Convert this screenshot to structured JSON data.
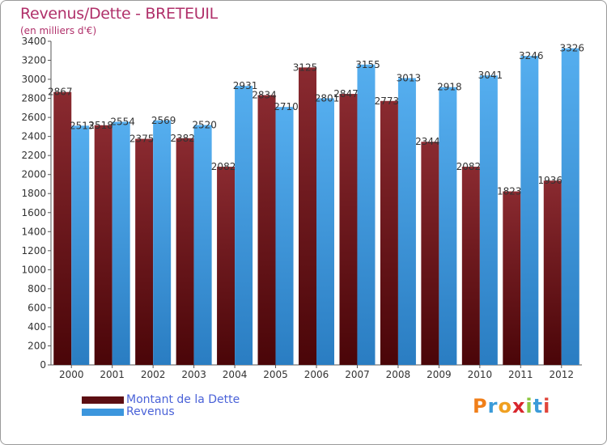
{
  "header": {
    "title": "Revenus/Dette - BRETEUIL",
    "subtitle": "(en milliers d'€)"
  },
  "logo": {
    "text": "Proxiti",
    "letters": [
      "P",
      "r",
      "o",
      "x",
      "i",
      "t",
      "i"
    ],
    "letter_colors": [
      "#f07f1a",
      "#3b9bd9",
      "#f0a020",
      "#d8262c",
      "#8cc63f",
      "#3b9bd9",
      "#e0453a"
    ]
  },
  "chart_data": {
    "type": "bar",
    "title": "Revenus/Dette - BRETEUIL",
    "subtitle": "(en milliers d'€)",
    "categories": [
      "2000",
      "2001",
      "2002",
      "2003",
      "2004",
      "2005",
      "2006",
      "2007",
      "2008",
      "2009",
      "2010",
      "2011",
      "2012"
    ],
    "series": [
      {
        "name": "Montant de la Dette",
        "color": "#7a1c22",
        "values": [
          2867,
          2518,
          2375,
          2382,
          2082,
          2834,
          3125,
          2847,
          2773,
          2344,
          2082,
          1823,
          1936
        ],
        "labels": [
          "2867",
          "2518",
          "2375",
          "2382",
          "2082",
          "2834",
          "3125",
          "2847",
          "2773",
          "2344",
          "2082",
          "1823",
          "1936"
        ]
      },
      {
        "name": "Revenus",
        "color": "#3c96dd",
        "values": [
          2513,
          2554,
          2569,
          2520,
          2931,
          2710,
          2801,
          3155,
          3013,
          2918,
          3041,
          3246,
          3326
        ],
        "labels": [
          "2513",
          "2554",
          "2569",
          "2520",
          "2931",
          "2710",
          "2801",
          "3155",
          "3013",
          "2918",
          "3041",
          "3246",
          "3326"
        ]
      }
    ],
    "ylim": [
      0,
      3400
    ],
    "yticks": [
      "0",
      "200",
      "400",
      "600",
      "800",
      "1000",
      "1200",
      "1400",
      "1600",
      "1800",
      "2000",
      "2200",
      "2400",
      "2600",
      "2800",
      "3000",
      "3200",
      "3400"
    ],
    "grid": false,
    "legend_position": "bottom-left"
  }
}
